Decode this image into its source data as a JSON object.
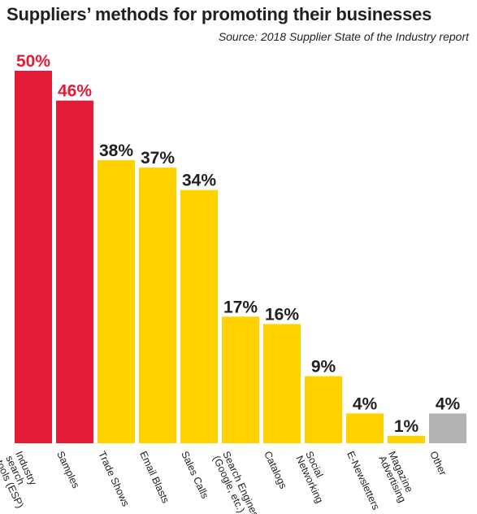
{
  "title": "Suppliers’ methods for promoting their businesses",
  "source": "Source: 2018 Supplier State of the Industry report",
  "colors": {
    "red": "#e31b37",
    "yellow": "#ffd200",
    "gray": "#b3b3b3",
    "text": "#231f20"
  },
  "chart_data": {
    "type": "bar",
    "title": "Suppliers’ methods for promoting their businesses",
    "categories": [
      "Industry search tools (ESP)",
      "Samples",
      "Trade Shows",
      "Email Blasts",
      "Sales Calls",
      "Search Engines (Google, etc.)",
      "Catalogs",
      "Social Networking",
      "E-Newsletters",
      "Magazine Advertising",
      "Other"
    ],
    "category_lines": [
      [
        "Industry",
        "search",
        "tools (ESP)"
      ],
      [
        "Samples"
      ],
      [
        "Trade Shows"
      ],
      [
        "Email Blasts"
      ],
      [
        "Sales Calls"
      ],
      [
        "Search Engines",
        "(Google, etc.)"
      ],
      [
        "Catalogs"
      ],
      [
        "Social",
        "Networking"
      ],
      [
        "E-Newsletters"
      ],
      [
        "Magazine",
        "Advertising"
      ],
      [
        "Other"
      ]
    ],
    "values": [
      50,
      46,
      38,
      37,
      34,
      17,
      16,
      9,
      4,
      1,
      4
    ],
    "value_labels": [
      "50%",
      "46%",
      "38%",
      "37%",
      "34%",
      "17%",
      "16%",
      "9%",
      "4%",
      "1%",
      "4%"
    ],
    "bar_colors": [
      "red",
      "red",
      "yellow",
      "yellow",
      "yellow",
      "yellow",
      "yellow",
      "yellow",
      "yellow",
      "yellow",
      "gray"
    ],
    "label_colors": [
      "red",
      "red",
      "text",
      "text",
      "text",
      "text",
      "text",
      "text",
      "text",
      "text",
      "text"
    ],
    "ylim": [
      0,
      50
    ],
    "xlabel": "",
    "ylabel": "",
    "grid": false,
    "legend": "none"
  }
}
